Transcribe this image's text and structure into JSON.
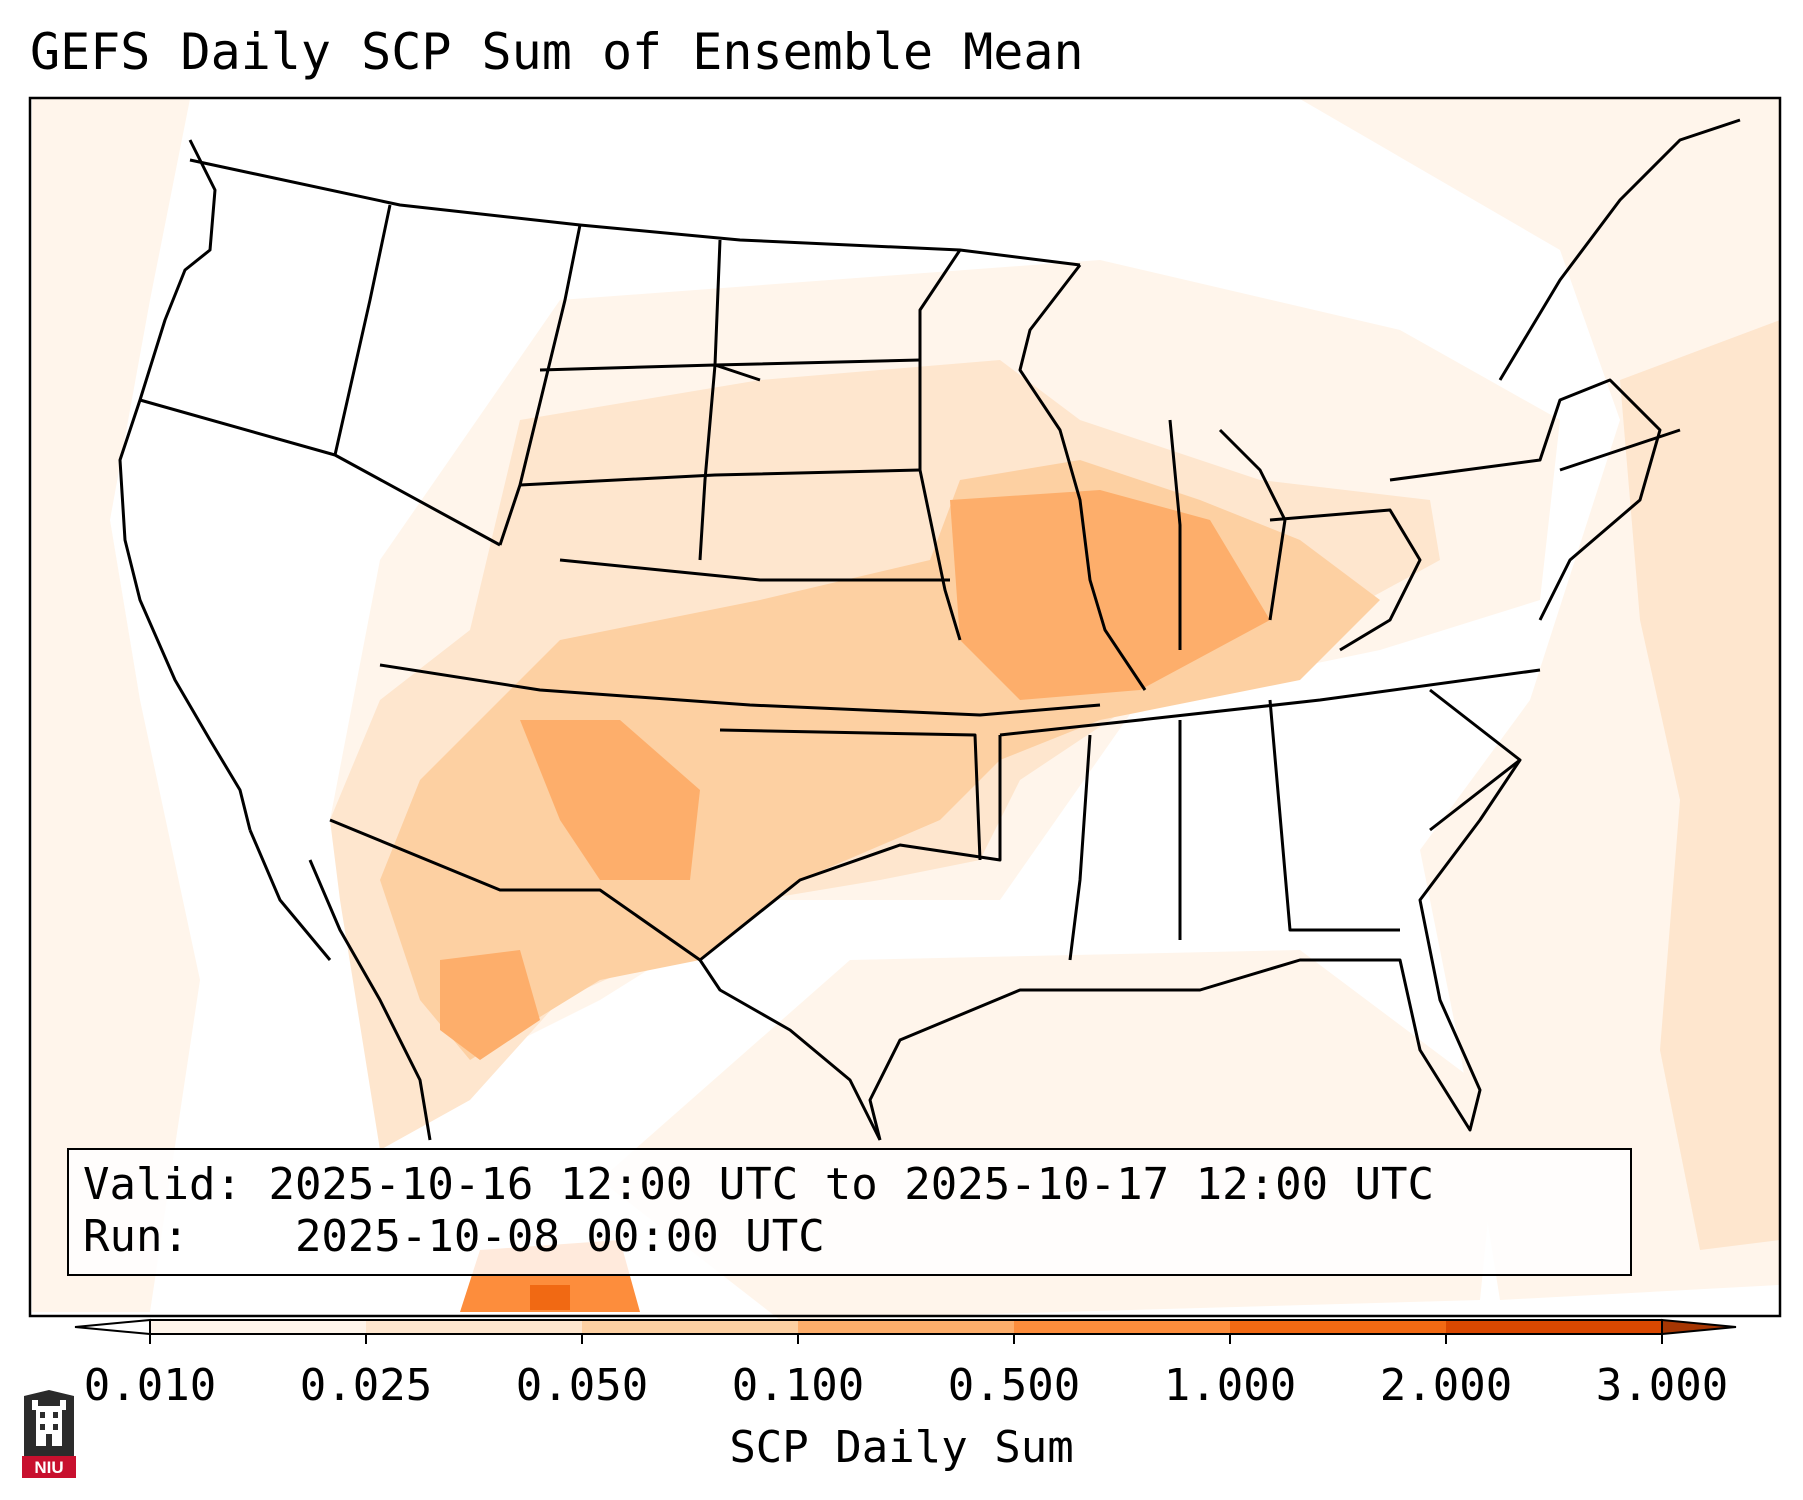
{
  "title": "GEFS Daily SCP Sum of Ensemble Mean",
  "info": {
    "valid_label": "Valid:",
    "valid_value": "2025-10-16 12:00 UTC to 2025-10-17 12:00 UTC",
    "run_label": "Run:",
    "run_value": "2025-10-08 00:00 UTC"
  },
  "colorbar": {
    "label": "SCP Daily Sum",
    "ticks": [
      "0.010",
      "0.025",
      "0.050",
      "0.100",
      "0.500",
      "1.000",
      "2.000",
      "3.000"
    ],
    "colors": [
      "#fff5eb",
      "#fee6ce",
      "#fdd0a2",
      "#fdae6b",
      "#fd8d3c",
      "#f16913",
      "#d94801",
      "#a63603"
    ],
    "extend": "both"
  },
  "logo": {
    "text": "NIU",
    "color": "#c8102e"
  }
}
